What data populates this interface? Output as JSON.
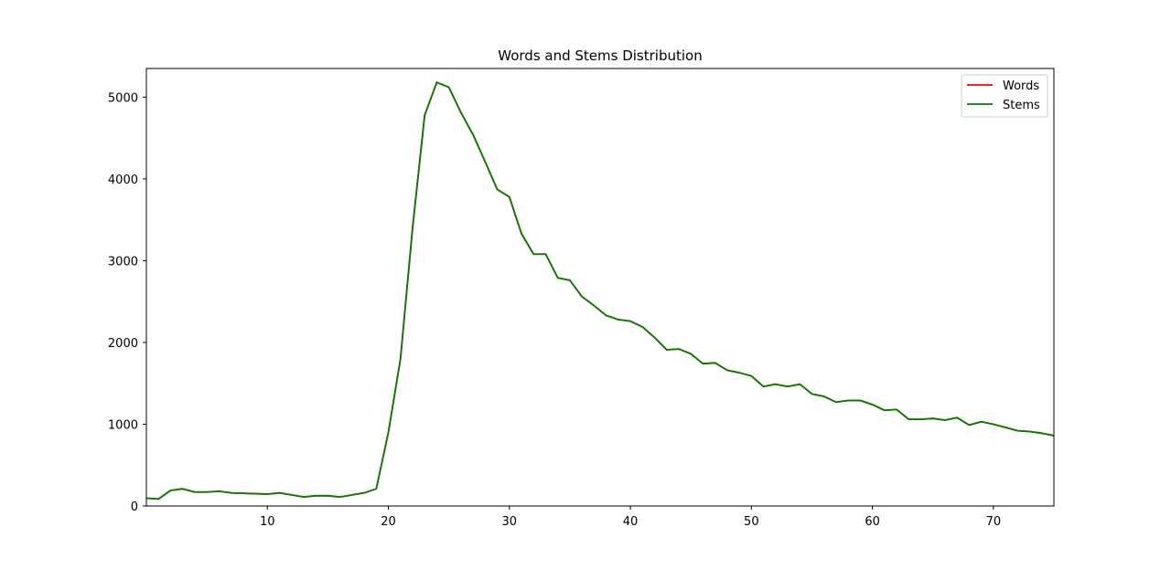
{
  "chart_data": {
    "type": "line",
    "title": "Words and Stems Distribution",
    "xlabel": "",
    "ylabel": "",
    "xlim": [
      0,
      75
    ],
    "ylim": [
      0,
      5350
    ],
    "xticks": [
      10,
      20,
      30,
      40,
      50,
      60,
      70
    ],
    "yticks": [
      0,
      1000,
      2000,
      3000,
      4000,
      5000
    ],
    "grid": false,
    "legend": {
      "position": "top-right",
      "entries": [
        "Words",
        "Stems"
      ]
    },
    "x": [
      0,
      1,
      2,
      3,
      4,
      5,
      6,
      7,
      8,
      9,
      10,
      11,
      12,
      13,
      14,
      15,
      16,
      17,
      18,
      19,
      20,
      21,
      22,
      23,
      24,
      25,
      26,
      27,
      28,
      29,
      30,
      31,
      32,
      33,
      34,
      35,
      36,
      37,
      38,
      39,
      40,
      41,
      42,
      43,
      44,
      45,
      46,
      47,
      48,
      49,
      50,
      51,
      52,
      53,
      54,
      55,
      56,
      57,
      58,
      59,
      60,
      61,
      62,
      63,
      64,
      65,
      66,
      67,
      68,
      69,
      70,
      71,
      72,
      73,
      74,
      75
    ],
    "series": [
      {
        "name": "Words",
        "color": "#ff0000",
        "values": [
          95,
          85,
          190,
          210,
          170,
          170,
          180,
          160,
          155,
          150,
          145,
          160,
          135,
          110,
          125,
          125,
          110,
          135,
          160,
          210,
          900,
          1800,
          3400,
          4780,
          5180,
          5120,
          4810,
          4540,
          4210,
          3870,
          3780,
          3330,
          3080,
          3080,
          2790,
          2760,
          2560,
          2450,
          2330,
          2280,
          2260,
          2190,
          2060,
          1910,
          1920,
          1860,
          1740,
          1750,
          1660,
          1630,
          1590,
          1460,
          1490,
          1460,
          1490,
          1370,
          1340,
          1270,
          1290,
          1290,
          1240,
          1170,
          1180,
          1060,
          1060,
          1070,
          1050,
          1080,
          990,
          1030,
          1000,
          960,
          920,
          910,
          890,
          860
        ]
      },
      {
        "name": "Stems",
        "color": "#008000",
        "values": [
          95,
          85,
          190,
          210,
          170,
          170,
          180,
          160,
          155,
          150,
          145,
          160,
          135,
          110,
          125,
          125,
          110,
          135,
          160,
          210,
          900,
          1800,
          3400,
          4780,
          5180,
          5120,
          4810,
          4540,
          4210,
          3870,
          3780,
          3330,
          3080,
          3080,
          2790,
          2760,
          2560,
          2450,
          2330,
          2280,
          2260,
          2190,
          2060,
          1910,
          1920,
          1860,
          1740,
          1750,
          1660,
          1630,
          1590,
          1460,
          1490,
          1460,
          1490,
          1370,
          1340,
          1270,
          1290,
          1290,
          1240,
          1170,
          1180,
          1060,
          1060,
          1070,
          1050,
          1080,
          990,
          1030,
          1000,
          960,
          920,
          910,
          890,
          860
        ]
      }
    ]
  }
}
